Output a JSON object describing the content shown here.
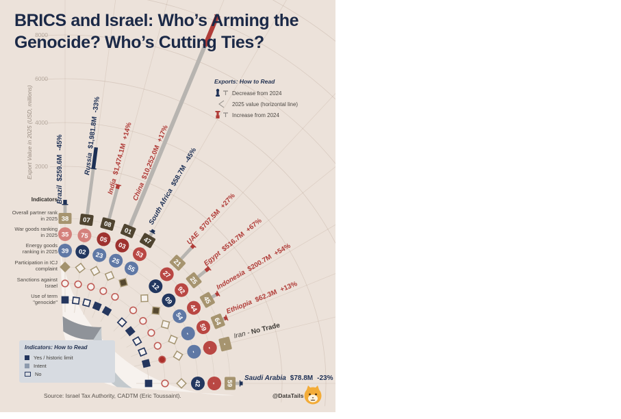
{
  "title": {
    "line1": "BRICS and Israel: Who’s Arming the",
    "line2": "Genocide? Who’s Cutting Ties?"
  },
  "axis": {
    "label": "Export Value in 2025 (USD, millions)",
    "ticks": [
      2000,
      4000,
      6000,
      8000
    ]
  },
  "exports_legend": {
    "title": "Exports: How to Read",
    "items": [
      {
        "icon": "decrease-marker-icon",
        "label": "Decrease from 2024"
      },
      {
        "icon": "value-cap-icon",
        "label": "2025 value (horizontal line)"
      },
      {
        "icon": "increase-marker-icon",
        "label": "Increase from 2024"
      }
    ]
  },
  "indicators_panel": {
    "header": "Indicators",
    "rows": [
      "Overall partner rank in 2025",
      "War goods ranking in 2025",
      "Energy goods ranking in 2025",
      "Participation in ICJ complaint",
      "Sanctions against Israel",
      "Use of term \"genocide\""
    ]
  },
  "indicators_legend": {
    "title": "Indicators: How to Read",
    "items": [
      {
        "style": "filled",
        "label": "Yes / historic limit"
      },
      {
        "style": "intent",
        "label": "Intent"
      },
      {
        "style": "open",
        "label": "No"
      }
    ]
  },
  "source": "Source: Israel Tax Authority, CADTM (Eric Toussaint).",
  "credit": "@DataTails",
  "chart_data": {
    "type": "radial-fan",
    "units": "USD millions",
    "value_axis": {
      "min": 0,
      "max": 8000,
      "ticks": [
        2000,
        4000,
        6000,
        8000
      ]
    },
    "palette": {
      "background": "#ece2da",
      "sector": "#f7f2ee",
      "navy": "#22375f",
      "slate": "#5f78a5",
      "red": "#b94743",
      "darkred": "#9e322f",
      "pink": "#d4817c",
      "tan": "#a6946f",
      "darktan": "#4f4430",
      "decrease": "#1d3055",
      "increase": "#b03c38",
      "grayline": "#b7b4b0"
    },
    "rings_order_outer_to_inner": [
      "overall",
      "war",
      "energy",
      "icj",
      "sanctions",
      "genocide"
    ],
    "countries": [
      {
        "name": "Brazil",
        "angle": 90,
        "label_r": 262,
        "export_2025": 259.6,
        "value_label": "$259.6M",
        "change_label": "-45%",
        "change_pct": -45,
        "direction": "decrease",
        "overall": "38",
        "overall_shade": "tan",
        "war": "35",
        "war_shade": "pink",
        "energy": "39",
        "energy_shade": "slate",
        "icj": "intent",
        "sanctions": "no",
        "genocide": "yes"
      },
      {
        "name": "Russia",
        "angle": 82.5,
        "label_r": 306,
        "export_2025": 1981.8,
        "value_label": "$1,981.8M",
        "change_label": "-33%",
        "change_pct": -33,
        "direction": "decrease",
        "overall": "07",
        "overall_shade": "dark",
        "war": "75",
        "war_shade": "pink",
        "energy": "02",
        "energy_shade": "navy",
        "icj": "no",
        "sanctions": "no",
        "genocide": "no"
      },
      {
        "name": "India",
        "angle": 75,
        "label_r": 284,
        "export_2025": 1474.1,
        "value_label": "$1,474.1M",
        "change_label": "+14%",
        "change_pct": 14,
        "direction": "increase",
        "overall": "08",
        "overall_shade": "dark",
        "war": "05",
        "war_shade": "darkred",
        "energy": "23",
        "energy_shade": "slate",
        "icj": "no",
        "sanctions": "no",
        "genocide": "no"
      },
      {
        "name": "China",
        "angle": 67.5,
        "label_r": 286,
        "export_2025": 10252.0,
        "value_label": "$10,252.0M",
        "change_label": "+17%",
        "change_pct": 17,
        "direction": "increase",
        "overall": "01",
        "overall_shade": "dark",
        "war": "03",
        "war_shade": "darkred",
        "energy": "25",
        "energy_shade": "slate",
        "icj": "no",
        "sanctions": "no",
        "genocide": "yes"
      },
      {
        "name": "South Africa",
        "angle": 60,
        "label_r": 264,
        "export_2025": 58.7,
        "value_label": "$58.7M",
        "change_label": "-45%",
        "change_pct": -45,
        "direction": "decrease",
        "overall": "47",
        "overall_shade": "dark",
        "war": "53",
        "war_shade": "red",
        "energy": "55",
        "energy_shade": "slate",
        "icj": "yes",
        "sanctions": "no",
        "genocide": "yes"
      },
      {
        "name": "UAE",
        "angle": 47,
        "label_r": 272,
        "export_2025": 707.5,
        "value_label": "$707.5M",
        "change_label": "+27%",
        "change_pct": 27,
        "direction": "increase",
        "overall": "21",
        "overall_shade": "tan",
        "war": "27",
        "war_shade": "red",
        "energy": "12",
        "energy_shade": "navy",
        "icj": "no",
        "sanctions": "no",
        "genocide": "no"
      },
      {
        "name": "Egypt",
        "angle": 38.7,
        "label_r": 268,
        "export_2025": 516.7,
        "value_label": "$516.7M",
        "change_label": "+67%",
        "change_pct": 67,
        "direction": "increase",
        "overall": "25",
        "overall_shade": "tan",
        "war": "92",
        "war_shade": "red",
        "energy": "09",
        "energy_shade": "navy",
        "icj": "yes",
        "sanctions": "no",
        "genocide": "yes"
      },
      {
        "name": "Indonesia",
        "angle": 30.4,
        "label_r": 262,
        "export_2025": 200.7,
        "value_label": "$200.7M",
        "change_label": "+54%",
        "change_pct": 54,
        "direction": "increase",
        "overall": "45",
        "overall_shade": "tan",
        "war": "44",
        "war_shade": "red",
        "energy": "54",
        "energy_shade": "slate",
        "icj": "no",
        "sanctions": "no",
        "genocide": "no"
      },
      {
        "name": "Ethiopia",
        "angle": 22.1,
        "label_r": 258,
        "export_2025": 62.3,
        "value_label": "$62.3M",
        "change_label": "+13%",
        "change_pct": 13,
        "direction": "increase",
        "overall": "64",
        "overall_shade": "tan",
        "war": "59",
        "war_shade": "red",
        "energy": "-",
        "energy_shade": "slate",
        "icj": "no",
        "sanctions": "no",
        "genocide": "no"
      },
      {
        "name": "Iran",
        "angle": 13.8,
        "label_r": 256,
        "export_2025": null,
        "value_label": "No Trade",
        "change_label": "",
        "change_pct": null,
        "direction": "none",
        "overall": "-",
        "overall_shade": "tan",
        "war": "-",
        "war_shade": "red",
        "energy": "-",
        "energy_shade": "slate",
        "icj": "no",
        "sanctions": "yes",
        "genocide": "yes"
      },
      {
        "name": "Saudi Arabia",
        "angle": 0,
        "label_r": 262,
        "export_2025": 78.8,
        "value_label": "$78.8M",
        "change_label": "-23%",
        "change_pct": -23,
        "direction": "decrease",
        "overall": "59",
        "overall_shade": "tan",
        "war": "-",
        "war_shade": "red",
        "energy": "42",
        "energy_shade": "navy",
        "icj": "no",
        "sanctions": "no",
        "genocide": "yes"
      }
    ]
  }
}
